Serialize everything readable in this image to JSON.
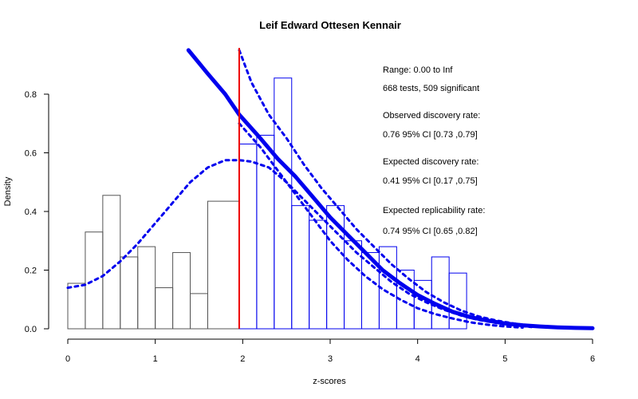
{
  "chart_data": {
    "type": "histogram",
    "title": "Leif Edward Ottesen Kennair",
    "xlabel": "z-scores",
    "ylabel": "Density",
    "xlim": [
      0,
      6
    ],
    "ylim": [
      0,
      0.85
    ],
    "x_ticks": [
      "0",
      "1",
      "2",
      "3",
      "4",
      "5",
      "6"
    ],
    "y_ticks": [
      "0.0",
      "0.2",
      "0.4",
      "0.6",
      "0.8"
    ],
    "grid": false,
    "significance_cutoff": 1.96,
    "colors": {
      "nonsignificant": "#555555",
      "significant": "#0000ee",
      "cutoff": "#ee0000",
      "curve": "#0000ee"
    },
    "bins_nonsignificant": [
      {
        "x0": 0.0,
        "x1": 0.2,
        "density": 0.155
      },
      {
        "x0": 0.2,
        "x1": 0.4,
        "density": 0.33
      },
      {
        "x0": 0.4,
        "x1": 0.6,
        "density": 0.455
      },
      {
        "x0": 0.6,
        "x1": 0.8,
        "density": 0.245
      },
      {
        "x0": 0.8,
        "x1": 1.0,
        "density": 0.28
      },
      {
        "x0": 1.0,
        "x1": 1.2,
        "density": 0.14
      },
      {
        "x0": 1.2,
        "x1": 1.4,
        "density": 0.26
      },
      {
        "x0": 1.4,
        "x1": 1.6,
        "density": 0.12
      },
      {
        "x0": 1.6,
        "x1": 1.96,
        "density": 0.435
      }
    ],
    "bins_significant": [
      {
        "x0": 1.96,
        "x1": 2.16,
        "density": 0.63
      },
      {
        "x0": 2.16,
        "x1": 2.36,
        "density": 0.66
      },
      {
        "x0": 2.36,
        "x1": 2.56,
        "density": 0.855
      },
      {
        "x0": 2.56,
        "x1": 2.76,
        "density": 0.42
      },
      {
        "x0": 2.76,
        "x1": 2.96,
        "density": 0.37
      },
      {
        "x0": 2.96,
        "x1": 3.16,
        "density": 0.42
      },
      {
        "x0": 3.16,
        "x1": 3.36,
        "density": 0.3
      },
      {
        "x0": 3.36,
        "x1": 3.56,
        "density": 0.26
      },
      {
        "x0": 3.56,
        "x1": 3.76,
        "density": 0.28
      },
      {
        "x0": 3.76,
        "x1": 3.96,
        "density": 0.2
      },
      {
        "x0": 3.96,
        "x1": 4.16,
        "density": 0.165
      },
      {
        "x0": 4.16,
        "x1": 4.36,
        "density": 0.245
      },
      {
        "x0": 4.36,
        "x1": 4.56,
        "density": 0.19
      }
    ],
    "series": [
      {
        "style": "solid",
        "x": [
          1.38,
          1.6,
          1.8,
          1.96,
          2.2,
          2.4,
          2.6,
          2.8,
          3.0,
          3.2,
          3.4,
          3.6,
          3.8,
          4.0,
          4.2,
          4.4,
          4.6,
          4.8,
          5.0,
          5.2,
          5.4,
          5.6,
          5.8,
          6.0
        ],
        "y": [
          0.95,
          0.87,
          0.8,
          0.73,
          0.65,
          0.58,
          0.52,
          0.45,
          0.38,
          0.32,
          0.26,
          0.2,
          0.155,
          0.115,
          0.085,
          0.058,
          0.04,
          0.028,
          0.018,
          0.012,
          0.008,
          0.005,
          0.003,
          0.002
        ]
      },
      {
        "style": "dashed",
        "x": [
          0.0,
          0.2,
          0.4,
          0.6,
          0.8,
          1.0,
          1.2,
          1.4,
          1.6,
          1.8,
          1.96,
          2.1,
          2.3,
          2.5,
          2.7,
          2.9,
          3.1,
          3.3,
          3.5,
          3.7,
          3.9,
          4.1,
          4.3,
          4.5,
          4.7,
          4.9,
          5.1,
          5.3
        ],
        "y": [
          0.14,
          0.15,
          0.18,
          0.23,
          0.29,
          0.36,
          0.43,
          0.5,
          0.55,
          0.575,
          0.575,
          0.57,
          0.55,
          0.5,
          0.44,
          0.38,
          0.32,
          0.26,
          0.21,
          0.16,
          0.12,
          0.09,
          0.065,
          0.045,
          0.03,
          0.02,
          0.012,
          0.006
        ]
      },
      {
        "style": "dashed",
        "x": [
          1.96,
          2.1,
          2.3,
          2.5,
          2.7,
          2.9,
          3.1,
          3.3,
          3.5,
          3.7,
          3.9,
          4.1,
          4.3,
          4.5,
          4.7,
          4.9,
          5.1,
          5.3,
          5.5
        ],
        "y": [
          0.95,
          0.84,
          0.73,
          0.65,
          0.56,
          0.48,
          0.41,
          0.34,
          0.28,
          0.22,
          0.17,
          0.125,
          0.09,
          0.062,
          0.042,
          0.028,
          0.018,
          0.01,
          0.005
        ]
      },
      {
        "style": "dashed",
        "x": [
          1.96,
          2.2,
          2.4,
          2.6,
          2.8,
          3.0,
          3.2,
          3.4,
          3.6,
          3.8,
          4.0,
          4.2,
          4.4,
          4.6,
          4.8,
          5.0,
          5.2
        ],
        "y": [
          0.7,
          0.62,
          0.54,
          0.46,
          0.38,
          0.3,
          0.235,
          0.18,
          0.135,
          0.1,
          0.07,
          0.05,
          0.035,
          0.022,
          0.014,
          0.008,
          0.004
        ]
      }
    ],
    "annotations": {
      "range": "Range: 0.00 to Inf",
      "tests": "668 tests, 509 significant",
      "odr_label": "Observed discovery rate:",
      "odr_value": "0.76  95% CI [0.73 ,0.79]",
      "edr_label": "Expected discovery rate:",
      "edr_value": "0.41  95% CI [0.17 ,0.75]",
      "err_label": "Expected replicability rate:",
      "err_value": "0.74  95% CI [0.65 ,0.82]"
    }
  }
}
